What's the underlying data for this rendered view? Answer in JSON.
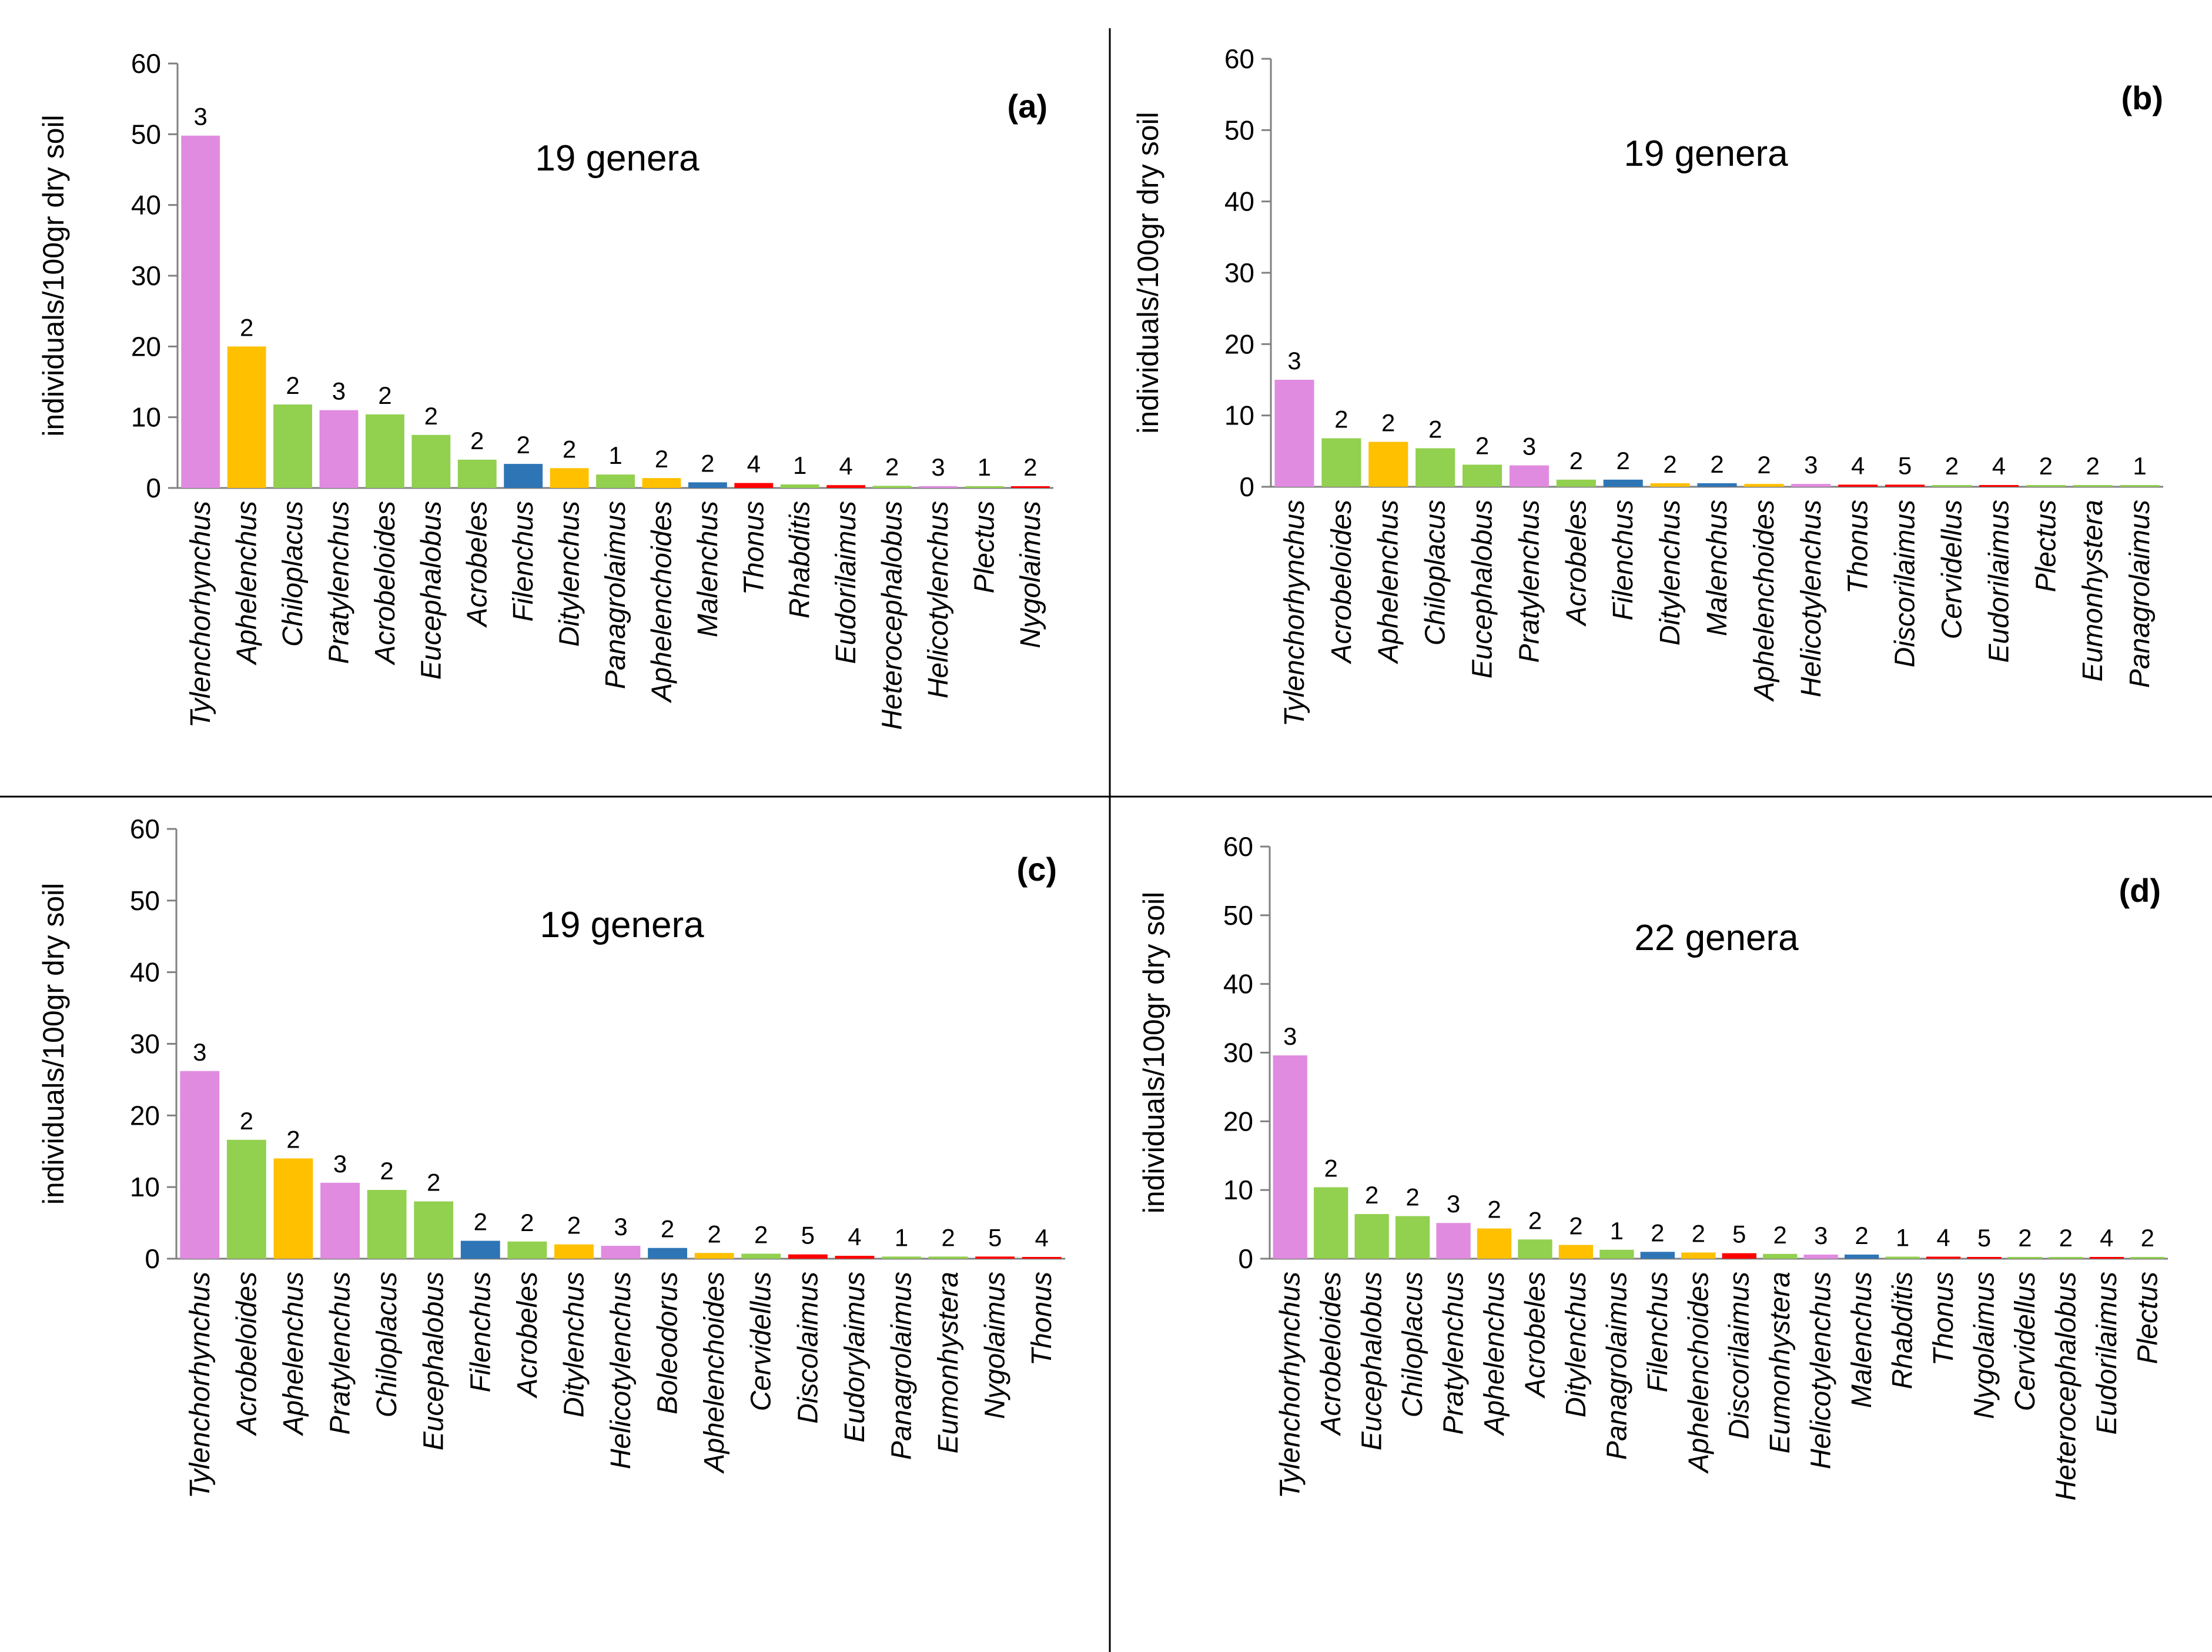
{
  "colors": {
    "1": "#77c74e",
    "2": "#91d35b",
    "2b": "#ffc000",
    "2f": "#2e75b6",
    "3": "#e08be0",
    "4": "#ff0000",
    "5": "#ff0000",
    "cp1": "#92d050",
    "cp2_plant": "#92d050",
    "axis": "#808080"
  },
  "chart_data": [
    {
      "type": "bar",
      "panel": "(a)",
      "subtitle": "19 genera",
      "ylabel": "individuals/100gr dry soil",
      "ylim": [
        0,
        60
      ],
      "yticks": [
        "0",
        "10",
        "20",
        "30",
        "40",
        "50",
        "60"
      ],
      "categories": [
        "Tylenchorhynchus",
        "Aphelenchus",
        "Chiloplacus",
        "Pratylenchus",
        "Acrobeloides",
        "Eucephalobus",
        "Acrobeles",
        "Filenchus",
        "Ditylenchus",
        "Panagrolaimus",
        "Aphelenchoides",
        "Malenchus",
        "Thonus",
        "Rhabditis",
        "Eudorilaimus",
        "Heterocephalobus",
        "Helicotylenchus",
        "Plectus",
        "Nygolaimus"
      ],
      "values": [
        49.8,
        20.0,
        11.8,
        11.0,
        10.4,
        7.5,
        4.0,
        3.4,
        2.8,
        1.9,
        1.4,
        0.8,
        0.7,
        0.5,
        0.4,
        0.3,
        0.2,
        0.2,
        0.2
      ],
      "cp_labels": [
        "3",
        "2",
        "2",
        "3",
        "2",
        "2",
        "2",
        "2",
        "2",
        "1",
        "2",
        "2",
        "4",
        "1",
        "4",
        "2",
        "3",
        "1",
        "2"
      ],
      "bar_colors": [
        "#e08be0",
        "#ffc000",
        "#92d050",
        "#e08be0",
        "#92d050",
        "#92d050",
        "#92d050",
        "#2e75b6",
        "#ffc000",
        "#92d050",
        "#ffc000",
        "#2e75b6",
        "#ff0000",
        "#92d050",
        "#ff0000",
        "#92d050",
        "#e08be0",
        "#92d050",
        "#ff0000"
      ]
    },
    {
      "type": "bar",
      "panel": "(b)",
      "subtitle": "19 genera",
      "ylabel": "individuals/100gr dry soil",
      "ylim": [
        0,
        60
      ],
      "yticks": [
        "0",
        "10",
        "20",
        "30",
        "40",
        "50",
        "60"
      ],
      "categories": [
        "Tylenchorhynchus",
        "Acrobeloides",
        "Aphelenchus",
        "Chiloplacus",
        "Eucephalobus",
        "Pratylenchus",
        "Acrobeles",
        "Filenchus",
        "Ditylenchus",
        "Malenchus",
        "Aphelenchoides",
        "Helicotylenchus",
        "Thonus",
        "Discorilaimus",
        "Cervidellus",
        "Eudorilaimus",
        "Plectus",
        "Eumonhystera",
        "Panagrolaimus"
      ],
      "values": [
        15.0,
        6.8,
        6.3,
        5.4,
        3.1,
        3.0,
        1.0,
        1.0,
        0.5,
        0.5,
        0.4,
        0.4,
        0.3,
        0.3,
        0.2,
        0.2,
        0.2,
        0.2,
        0.2
      ],
      "cp_labels": [
        "3",
        "2",
        "2",
        "2",
        "2",
        "3",
        "2",
        "2",
        "2",
        "2",
        "2",
        "3",
        "4",
        "5",
        "2",
        "4",
        "2",
        "2",
        "1"
      ],
      "bar_colors": [
        "#e08be0",
        "#92d050",
        "#ffc000",
        "#92d050",
        "#92d050",
        "#e08be0",
        "#92d050",
        "#2e75b6",
        "#ffc000",
        "#2e75b6",
        "#ffc000",
        "#e08be0",
        "#ff0000",
        "#ff0000",
        "#92d050",
        "#ff0000",
        "#92d050",
        "#92d050",
        "#92d050"
      ]
    },
    {
      "type": "bar",
      "panel": "(c)",
      "subtitle": "19 genera",
      "ylabel": "individuals/100gr dry soil",
      "ylim": [
        0,
        60
      ],
      "yticks": [
        "0",
        "10",
        "20",
        "30",
        "40",
        "50",
        "60"
      ],
      "categories": [
        "Tylenchorhynchus",
        "Acrobeloides",
        "Aphelenchus",
        "Pratylenchus",
        "Chiloplacus",
        "Eucephalobus",
        "Filenchus",
        "Acrobeles",
        "Ditylenchus",
        "Helicotylenchus",
        "Boleodorus",
        "Aphelenchoides",
        "Cervidellus",
        "Discolaimus",
        "Eudorylaimus",
        "Panagrolaimus",
        "Eumonhystera",
        "Nygolaimus",
        "Thonus"
      ],
      "values": [
        26.2,
        16.6,
        14.0,
        10.6,
        9.6,
        8.0,
        2.5,
        2.4,
        2.0,
        1.8,
        1.5,
        0.8,
        0.7,
        0.6,
        0.4,
        0.3,
        0.3,
        0.3,
        0.2
      ],
      "cp_labels": [
        "3",
        "2",
        "2",
        "3",
        "2",
        "2",
        "2",
        "2",
        "2",
        "3",
        "2",
        "2",
        "2",
        "5",
        "4",
        "1",
        "2",
        "5",
        "4"
      ],
      "bar_colors": [
        "#e08be0",
        "#92d050",
        "#ffc000",
        "#e08be0",
        "#92d050",
        "#92d050",
        "#2e75b6",
        "#92d050",
        "#ffc000",
        "#e08be0",
        "#2e75b6",
        "#ffc000",
        "#92d050",
        "#ff0000",
        "#ff0000",
        "#92d050",
        "#92d050",
        "#ff0000",
        "#ff0000"
      ]
    },
    {
      "type": "bar",
      "panel": "(d)",
      "subtitle": "22 genera",
      "ylabel": "individuals/100gr dry soil",
      "ylim": [
        0,
        60
      ],
      "yticks": [
        "0",
        "10",
        "20",
        "30",
        "40",
        "50",
        "60"
      ],
      "categories": [
        "Tylenchorhynchus",
        "Acrobeloides",
        "Eucephalobus",
        "Chiloplacus",
        "Pratylenchus",
        "Aphelenchus",
        "Acrobeles",
        "Ditylenchus",
        "Panagrolaimus",
        "Filenchus",
        "Aphelenchoides",
        "Discorilaimus",
        "Eumonhystera",
        "Helicotylenchus",
        "Malenchus",
        "Rhabditis",
        "Thonus",
        "Nygolaimus",
        "Cervidellus",
        "Heterocephalobus",
        "Eudorilaimus",
        "Plectus"
      ],
      "values": [
        29.6,
        10.4,
        6.5,
        6.2,
        5.2,
        4.4,
        2.8,
        2.0,
        1.3,
        1.0,
        0.9,
        0.8,
        0.7,
        0.6,
        0.6,
        0.3,
        0.3,
        0.2,
        0.2,
        0.2,
        0.1,
        0.1
      ],
      "cp_labels": [
        "3",
        "2",
        "2",
        "2",
        "3",
        "2",
        "2",
        "2",
        "1",
        "2",
        "2",
        "5",
        "2",
        "3",
        "2",
        "1",
        "4",
        "5",
        "2",
        "2",
        "4",
        "2"
      ],
      "bar_colors": [
        "#e08be0",
        "#92d050",
        "#92d050",
        "#92d050",
        "#e08be0",
        "#ffc000",
        "#92d050",
        "#ffc000",
        "#92d050",
        "#2e75b6",
        "#ffc000",
        "#ff0000",
        "#92d050",
        "#e08be0",
        "#2e75b6",
        "#92d050",
        "#ff0000",
        "#ff0000",
        "#92d050",
        "#92d050",
        "#ff0000",
        "#92d050"
      ]
    }
  ]
}
